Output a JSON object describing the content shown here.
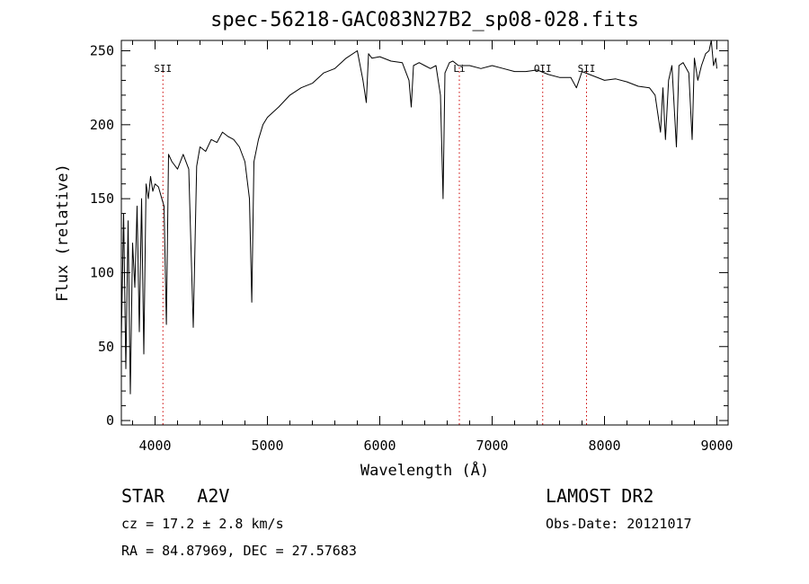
{
  "chart_data": {
    "type": "line",
    "title": "spec-56218-GAC083N27B2_sp08-028.fits",
    "xlabel": "Wavelength (Å)",
    "ylabel": "Flux (relative)",
    "xlim": [
      3700,
      9100
    ],
    "ylim": [
      -3,
      257
    ],
    "xticks": [
      4000,
      5000,
      6000,
      7000,
      8000,
      9000
    ],
    "xtick_labels": [
      "4000",
      "5000",
      "6000",
      "7000",
      "8000",
      "9000"
    ],
    "yticks": [
      0,
      50,
      100,
      150,
      200,
      250
    ],
    "ytick_labels": [
      "0",
      "50",
      "100",
      "150",
      "200",
      "250"
    ],
    "grid": false,
    "line_color": "#000000",
    "marker_color": "#cc0000",
    "series": [
      {
        "x": [
          3700,
          3720,
          3740,
          3760,
          3780,
          3800,
          3820,
          3840,
          3860,
          3880,
          3900,
          3920,
          3940,
          3960,
          3980,
          4000,
          4030,
          4060,
          4080,
          4101,
          4120,
          4150,
          4200,
          4250,
          4300,
          4340,
          4370,
          4400,
          4450,
          4500,
          4550,
          4600,
          4650,
          4700,
          4750,
          4800,
          4840,
          4861,
          4880,
          4920,
          4960,
          5000,
          5100,
          5200,
          5300,
          5400,
          5500,
          5600,
          5700,
          5800,
          5850,
          5880,
          5900,
          5930,
          6000,
          6100,
          6200,
          6260,
          6280,
          6300,
          6350,
          6400,
          6450,
          6500,
          6540,
          6563,
          6580,
          6620,
          6650,
          6700,
          6800,
          6900,
          7000,
          7100,
          7200,
          7300,
          7400,
          7500,
          7600,
          7700,
          7750,
          7800,
          7900,
          8000,
          8100,
          8200,
          8300,
          8400,
          8450,
          8498,
          8520,
          8542,
          8570,
          8600,
          8640,
          8662,
          8700,
          8750,
          8780,
          8800,
          8830,
          8863,
          8900,
          8930,
          8950,
          8970,
          8990,
          9000
        ],
        "y": [
          55,
          140,
          35,
          135,
          18,
          120,
          90,
          145,
          60,
          150,
          45,
          160,
          150,
          165,
          155,
          160,
          158,
          150,
          145,
          65,
          180,
          175,
          170,
          180,
          170,
          63,
          172,
          185,
          182,
          190,
          188,
          195,
          192,
          190,
          185,
          175,
          150,
          80,
          175,
          190,
          200,
          205,
          212,
          220,
          225,
          228,
          235,
          238,
          245,
          250,
          230,
          215,
          248,
          245,
          246,
          243,
          242,
          230,
          212,
          240,
          242,
          240,
          238,
          240,
          220,
          150,
          235,
          242,
          243,
          240,
          240,
          238,
          240,
          238,
          236,
          236,
          237,
          234,
          232,
          232,
          225,
          236,
          233,
          230,
          231,
          229,
          226,
          225,
          220,
          195,
          225,
          190,
          230,
          240,
          185,
          240,
          242,
          235,
          190,
          245,
          230,
          240,
          248,
          250,
          257,
          240,
          245,
          238
        ]
      }
    ],
    "markers": [
      {
        "label": "SII",
        "x": 4070
      },
      {
        "label": "Li",
        "x": 6708
      },
      {
        "label": "OII",
        "x": 7450
      },
      {
        "label": "SII",
        "x": 7840
      }
    ]
  },
  "info": {
    "object_class": "STAR",
    "subclass": "A2V",
    "survey": "LAMOST DR2",
    "cz": "cz = 17.2 ± 2.8 km/s",
    "obs_date": "Obs-Date: 20121017",
    "radec": "RA =  84.87969, DEC =  27.57683"
  }
}
